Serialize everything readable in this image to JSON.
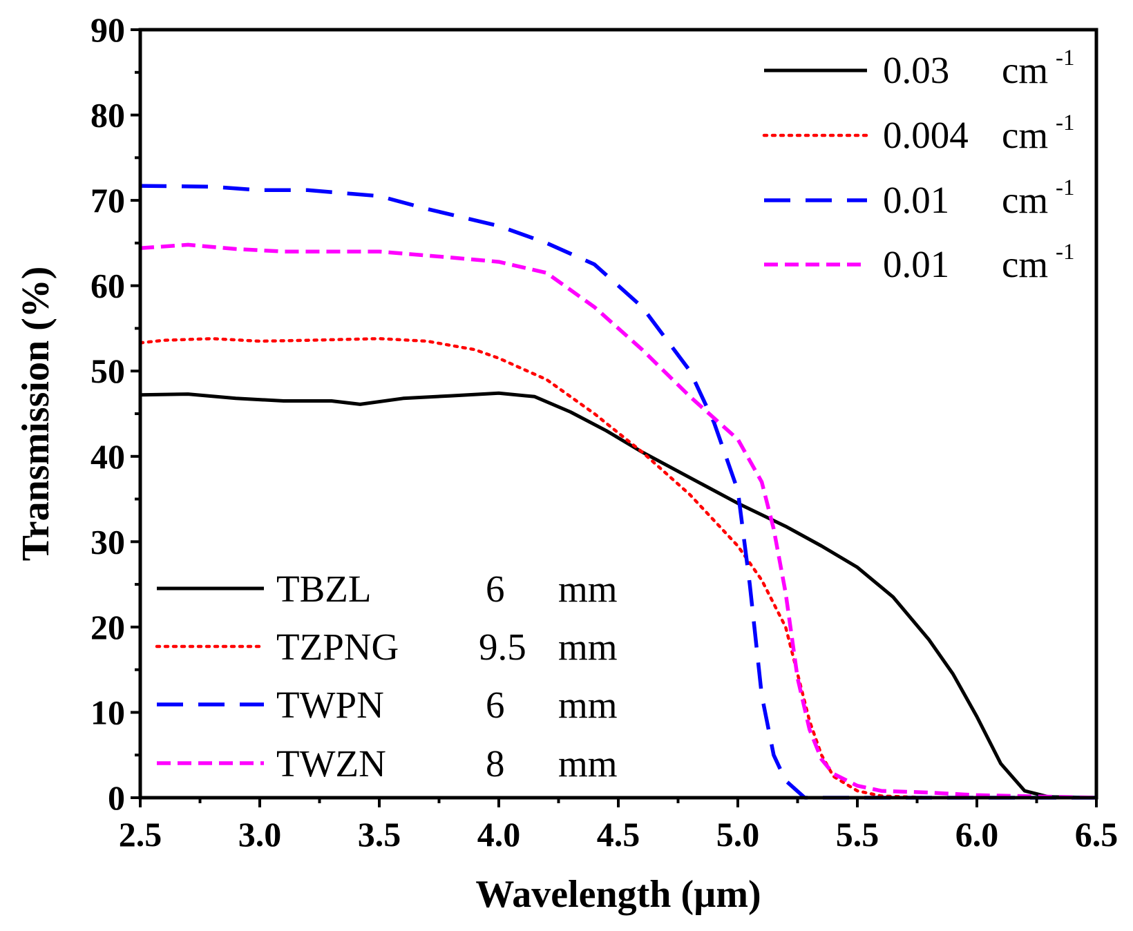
{
  "chart_data": {
    "type": "line",
    "title": "",
    "xlabel": "Wavelength (µm)",
    "ylabel": "Transmission (%)",
    "xlim": [
      2.5,
      6.5
    ],
    "ylim": [
      0,
      90
    ],
    "xticks": [
      "2.5",
      "3.0",
      "3.5",
      "4.0",
      "4.5",
      "5.0",
      "5.5",
      "6.0",
      "6.5"
    ],
    "yticks": [
      "0",
      "10",
      "20",
      "30",
      "40",
      "50",
      "60",
      "70",
      "80",
      "90"
    ],
    "grid": false,
    "series": [
      {
        "name": "TBZL",
        "thickness": "6",
        "unit": "mm",
        "absorption": "0.03",
        "absorption_unit": "cm",
        "absorption_exp": "-1",
        "color": "#000000",
        "style": "solid",
        "x": [
          2.5,
          2.7,
          2.9,
          3.1,
          3.3,
          3.42,
          3.6,
          3.8,
          4.0,
          4.15,
          4.3,
          4.45,
          4.6,
          4.8,
          5.0,
          5.2,
          5.35,
          5.5,
          5.65,
          5.8,
          5.9,
          6.0,
          6.1,
          6.2,
          6.3,
          6.5
        ],
        "y": [
          47.2,
          47.3,
          46.8,
          46.5,
          46.5,
          46.1,
          46.8,
          47.1,
          47.4,
          47.0,
          45.2,
          43.0,
          40.5,
          37.5,
          34.5,
          31.8,
          29.5,
          27.0,
          23.5,
          18.5,
          14.5,
          9.5,
          4.0,
          0.8,
          0.1,
          0.0
        ]
      },
      {
        "name": "TZPNG",
        "thickness": "9.5",
        "unit": "mm",
        "absorption": "0.004",
        "absorption_unit": "cm",
        "absorption_exp": "-1",
        "color": "#ff0000",
        "style": "dotted",
        "x": [
          2.5,
          2.6,
          2.8,
          3.0,
          3.2,
          3.5,
          3.7,
          3.9,
          4.0,
          4.2,
          4.4,
          4.6,
          4.8,
          5.0,
          5.1,
          5.2,
          5.25,
          5.3,
          5.35,
          5.4,
          5.5,
          5.6,
          5.8,
          6.0,
          6.5
        ],
        "y": [
          53.3,
          53.6,
          53.8,
          53.5,
          53.6,
          53.8,
          53.5,
          52.5,
          51.5,
          49.0,
          45.0,
          40.5,
          35.5,
          29.5,
          25.5,
          20.0,
          14.5,
          9.0,
          5.0,
          2.5,
          0.8,
          0.2,
          0.0,
          0.0,
          0.0
        ]
      },
      {
        "name": "TWPN",
        "thickness": "6",
        "unit": "mm",
        "absorption": "0.01",
        "absorption_unit": "cm",
        "absorption_exp": "-1",
        "color": "#0000ff",
        "style": "dashed",
        "x": [
          2.5,
          2.8,
          3.0,
          3.2,
          3.5,
          3.7,
          4.0,
          4.2,
          4.4,
          4.6,
          4.8,
          4.9,
          5.0,
          5.05,
          5.1,
          5.15,
          5.2,
          5.28,
          5.4,
          6.5
        ],
        "y": [
          71.7,
          71.6,
          71.2,
          71.2,
          70.5,
          69.0,
          67.0,
          65.0,
          62.5,
          57.5,
          50.0,
          44.0,
          36.0,
          25.0,
          12.0,
          5.0,
          2.0,
          0.0,
          0.0,
          0.0
        ]
      },
      {
        "name": "TWZN",
        "thickness": "8",
        "unit": "mm",
        "absorption": "0.01",
        "absorption_unit": "cm",
        "absorption_exp": "-1",
        "color": "#ff00ff",
        "style": "dashed-short",
        "x": [
          2.5,
          2.7,
          2.9,
          3.1,
          3.5,
          3.8,
          4.0,
          4.2,
          4.4,
          4.6,
          4.8,
          5.0,
          5.1,
          5.15,
          5.2,
          5.25,
          5.3,
          5.35,
          5.4,
          5.5,
          5.6,
          5.8,
          6.0,
          6.5
        ],
        "y": [
          64.4,
          64.8,
          64.3,
          64.0,
          64.0,
          63.3,
          62.8,
          61.5,
          57.5,
          52.5,
          47.0,
          42.0,
          37.0,
          31.5,
          24.0,
          14.0,
          8.0,
          4.5,
          2.8,
          1.4,
          0.8,
          0.6,
          0.3,
          0.0
        ]
      }
    ]
  }
}
